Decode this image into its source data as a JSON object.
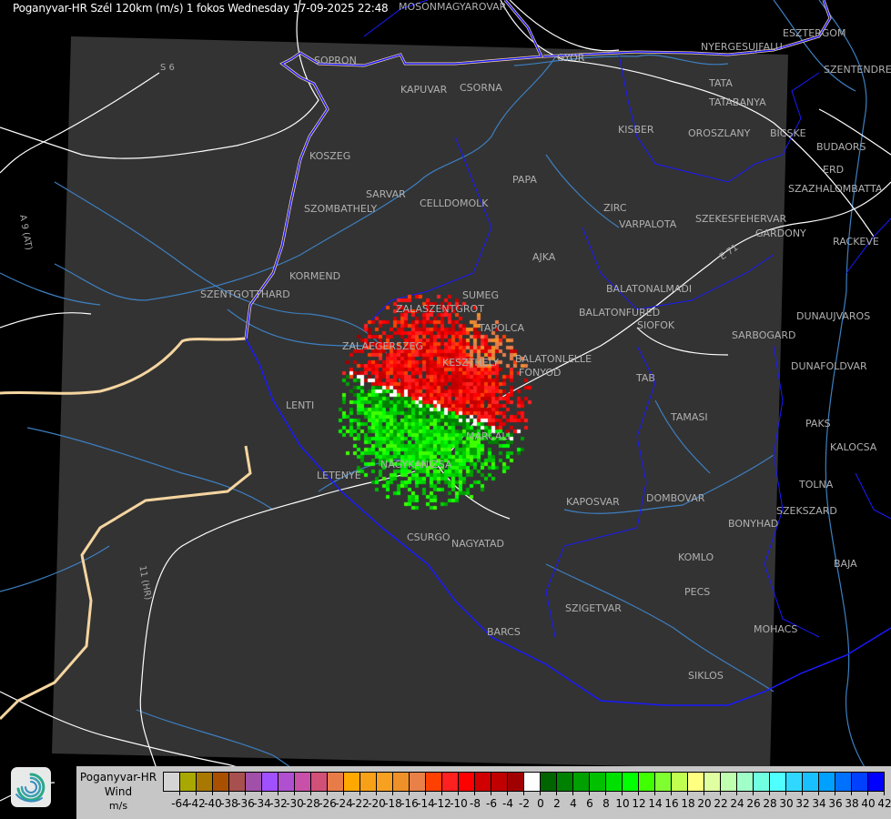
{
  "header": {
    "title": "Poganyvar-HR Szél 120km (m/s) 1 fokos Wednesday 17-09-2025 22:48"
  },
  "map": {
    "places": [
      "MOSONMAGYAROVAR",
      "SOPRON",
      "KAPUVAR",
      "CSORNA",
      "GYOR",
      "TATA",
      "TATABANYA",
      "KISBER",
      "OROSZLANY",
      "BICSKE",
      "BUDAORS",
      "ESZTERGOM",
      "NYERGESUJFALU",
      "SZENTENDRE",
      "ERD",
      "SZAZHALOMBATTA",
      "RACKEVE",
      "KOSZEG",
      "PAPA",
      "SARVAR",
      "CELLDOMOLK",
      "SZOMBATHELY",
      "ZIRC",
      "VARPALOTA",
      "SZEKESFEHERVAR",
      "GARDONY",
      "AJKA",
      "KORMEND",
      "SZENTGOTTHARD",
      "SUMEG",
      "ZALASZENTGROT",
      "BALATONALMADI",
      "BALATONFURED",
      "SIOFOK",
      "TAPOLCA",
      "DUNAUJVAROS",
      "SARBOGARD",
      "ZALAEGERSZEG",
      "KESZTHELY",
      "BALATONLELLE",
      "FONYOD",
      "DUNAFOLDVAR",
      "TAB",
      "TAMASI",
      "PAKS",
      "LENTI",
      "MARCALI",
      "KALOCSA",
      "LETENYE",
      "NAGYKANIZSA",
      "TOLNA",
      "KAPOSVAR",
      "DOMBOVAR",
      "SZEKSZARD",
      "BONYHAD",
      "CSURGO",
      "NAGYATAD",
      "KOMLO",
      "BAJA",
      "PECS",
      "SZIGETVAR",
      "MOHACS",
      "BARCS",
      "SIKLOS"
    ],
    "roads": [
      "S 6",
      "A 9 (AT)",
      "11 (HR)",
      "E 71"
    ],
    "colors": {
      "background": "#000000",
      "coverage": "#333333",
      "border": "#1a1aff",
      "border_outer": "#f5d5a0",
      "river": "#3d7fc0",
      "road": "#ffffff",
      "label": "#a8a8a8"
    },
    "radar": {
      "approaching_color_range": [
        "#00a000",
        "#00ff00"
      ],
      "receding_color_range": [
        "#c00000",
        "#ff4000"
      ]
    }
  },
  "legend": {
    "station": "Poganyvar-HR",
    "quantity": "Wind",
    "unit": "m/s",
    "colors": [
      "#d4d4d4",
      "#a8a800",
      "#a87800",
      "#a85000",
      "#a85050",
      "#a050a8",
      "#a050ff",
      "#b050d0",
      "#c850a8",
      "#d05078",
      "#e87c48",
      "#ffa800",
      "#f8a018",
      "#f8a020",
      "#f09028",
      "#e88048",
      "#ff4000",
      "#ff2020",
      "#ff0000",
      "#d00000",
      "#c00000",
      "#a00000",
      "#ffffff",
      "#006400",
      "#008000",
      "#00a000",
      "#00c000",
      "#00e000",
      "#00ff00",
      "#40ff00",
      "#80ff30",
      "#c0ff50",
      "#ffff80",
      "#e0ffa0",
      "#c0ffb0",
      "#a0ffc8",
      "#70ffe0",
      "#50ffff",
      "#30d8ff",
      "#18c0ff",
      "#00a0ff",
      "#0070ff",
      "#0040ff",
      "#0000ff"
    ],
    "ticks": [
      "-64",
      "-42",
      "-40",
      "-38",
      "-36",
      "-34",
      "-32",
      "-30",
      "-28",
      "-26",
      "-24",
      "-22",
      "-20",
      "-18",
      "-16",
      "-14",
      "-12",
      "-10",
      "-8",
      "-6",
      "-4",
      "-2",
      "0",
      "2",
      "4",
      "6",
      "8",
      "10",
      "12",
      "14",
      "16",
      "18",
      "20",
      "22",
      "24",
      "26",
      "28",
      "30",
      "32",
      "34",
      "36",
      "38",
      "40",
      "42"
    ]
  },
  "logo": {
    "icon": "spiral-logo-icon"
  }
}
